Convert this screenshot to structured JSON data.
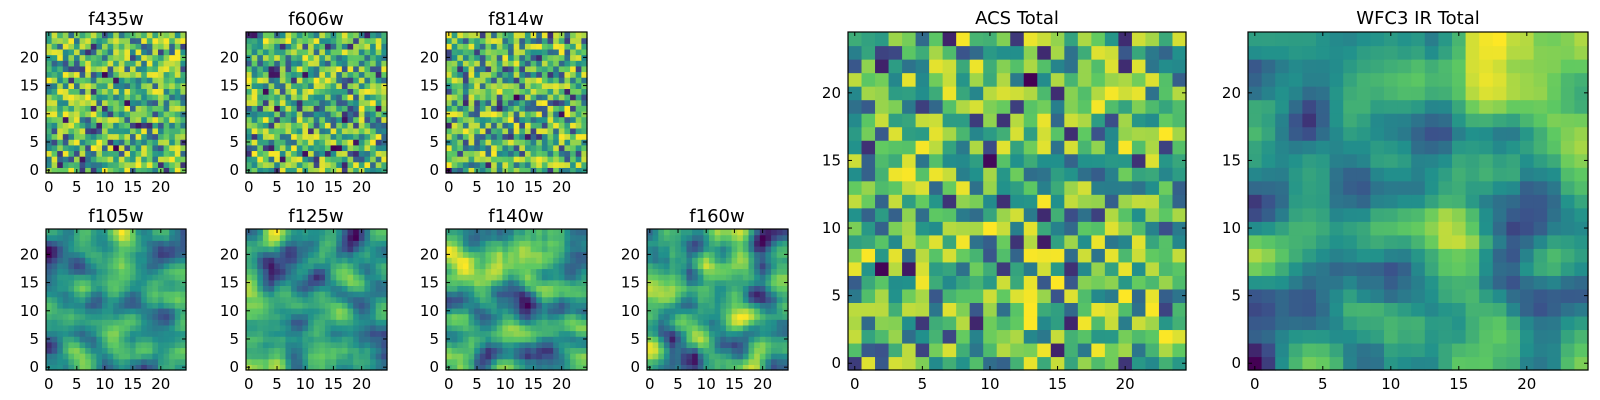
{
  "figure": {
    "panels": [
      {
        "id": "f435w",
        "title": "f435w",
        "seed": 435,
        "mode": "noise",
        "xticks": [
          0,
          5,
          10,
          15,
          20
        ],
        "yticks": [
          0,
          5,
          10,
          15,
          20
        ]
      },
      {
        "id": "f606w",
        "title": "f606w",
        "seed": 606,
        "mode": "noise",
        "xticks": [
          0,
          5,
          10,
          15,
          20
        ],
        "yticks": [
          0,
          5,
          10,
          15,
          20
        ]
      },
      {
        "id": "f814w",
        "title": "f814w",
        "seed": 814,
        "mode": "noise",
        "xticks": [
          0,
          5,
          10,
          15,
          20
        ],
        "yticks": [
          0,
          5,
          10,
          15,
          20
        ]
      },
      {
        "id": "f105w",
        "title": "f105w",
        "seed": 105,
        "mode": "smooth",
        "xticks": [
          0,
          5,
          10,
          15,
          20
        ],
        "yticks": [
          0,
          5,
          10,
          15,
          20
        ]
      },
      {
        "id": "f125w",
        "title": "f125w",
        "seed": 125,
        "mode": "smooth",
        "xticks": [
          0,
          5,
          10,
          15,
          20
        ],
        "yticks": [
          0,
          5,
          10,
          15,
          20
        ]
      },
      {
        "id": "f140w",
        "title": "f140w",
        "seed": 140,
        "mode": "smooth",
        "xticks": [
          0,
          5,
          10,
          15,
          20
        ],
        "yticks": [
          0,
          5,
          10,
          15,
          20
        ]
      },
      {
        "id": "f160w",
        "title": "f160w",
        "seed": 160,
        "mode": "smooth",
        "xticks": [
          0,
          5,
          10,
          15,
          20
        ],
        "yticks": [
          0,
          5,
          10,
          15,
          20
        ]
      },
      {
        "id": "acs-total",
        "title": "ACS Total",
        "seed": 999,
        "mode": "noise",
        "xticks": [
          0,
          5,
          10,
          15,
          20
        ],
        "yticks": [
          0,
          5,
          10,
          15,
          20
        ]
      },
      {
        "id": "wfc3-ir-total",
        "title": "WFC3 IR Total",
        "seed": 333,
        "mode": "smooth",
        "xticks": [
          0,
          5,
          10,
          15,
          20
        ],
        "yticks": [
          0,
          5,
          10,
          15,
          20
        ]
      }
    ]
  },
  "chart_data": {
    "type": "heatmap",
    "grid_size": [
      25,
      25
    ],
    "xlim": [
      -0.5,
      24.5
    ],
    "ylim": [
      -0.5,
      24.5
    ],
    "origin": "lower",
    "colormap": "viridis",
    "colors": [
      "#440154",
      "#3b528b",
      "#21918c",
      "#5ec962",
      "#fde725"
    ],
    "panels": [
      "f435w",
      "f606w",
      "f814w",
      "f105w",
      "f125w",
      "f140w",
      "f160w",
      "ACS Total",
      "WFC3 IR Total"
    ],
    "note": "25x25 pixel cutouts; per-pixel values not legible, rendered as normalized intensity"
  }
}
